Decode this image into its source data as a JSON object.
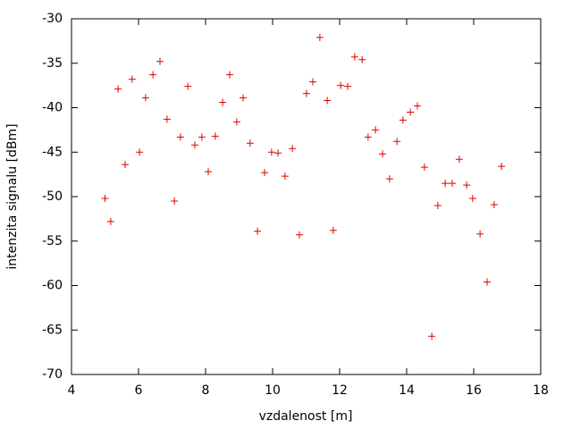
{
  "chart_data": {
    "type": "scatter",
    "x_label": "vzdalenost [m]",
    "y_label": "intenzita signalu [dBm]",
    "x": [
      5.0,
      5.17,
      5.39,
      5.6,
      5.81,
      6.03,
      6.21,
      6.43,
      6.64,
      6.85,
      7.07,
      7.25,
      7.47,
      7.68,
      7.89,
      8.08,
      8.29,
      8.51,
      8.72,
      8.93,
      9.12,
      9.33,
      9.55,
      9.76,
      9.97,
      10.16,
      10.37,
      10.59,
      10.8,
      11.01,
      11.2,
      11.41,
      11.63,
      11.81,
      12.03,
      12.24,
      12.45,
      12.67,
      12.85,
      13.07,
      13.28,
      13.49,
      13.71,
      13.89,
      14.11,
      14.32,
      14.53,
      14.75,
      14.93,
      15.15,
      15.36,
      15.57,
      15.79,
      15.97,
      16.19,
      16.4,
      16.61,
      16.83
    ],
    "values": [
      -50.2,
      -52.8,
      -37.9,
      -46.4,
      -36.8,
      -45.0,
      -38.9,
      -36.3,
      -34.8,
      -41.3,
      -50.5,
      -43.3,
      -37.6,
      -44.2,
      -43.3,
      -47.2,
      -43.2,
      -39.4,
      -36.3,
      -41.6,
      -38.9,
      -44.0,
      -53.9,
      -47.3,
      -45.0,
      -45.1,
      -47.7,
      -44.6,
      -54.3,
      -38.4,
      -37.1,
      -32.1,
      -39.2,
      -53.8,
      -37.5,
      -37.6,
      -34.3,
      -34.6,
      -43.3,
      -42.5,
      -45.2,
      -48.0,
      -43.8,
      -41.4,
      -40.5,
      -39.8,
      -46.7,
      -65.7,
      -51.0,
      -48.5,
      -48.5,
      -45.8,
      -48.7,
      -50.2,
      -54.2,
      -59.6,
      -50.9,
      -46.6
    ],
    "color": "#e00000",
    "xlim": [
      4,
      18
    ],
    "xticks": [
      4,
      6,
      8,
      10,
      12,
      14,
      16,
      18
    ],
    "ylim": [
      -70,
      -30
    ],
    "yticks": [
      -70,
      -65,
      -60,
      -55,
      -50,
      -45,
      -40,
      -35,
      -30
    ],
    "grid": false
  }
}
